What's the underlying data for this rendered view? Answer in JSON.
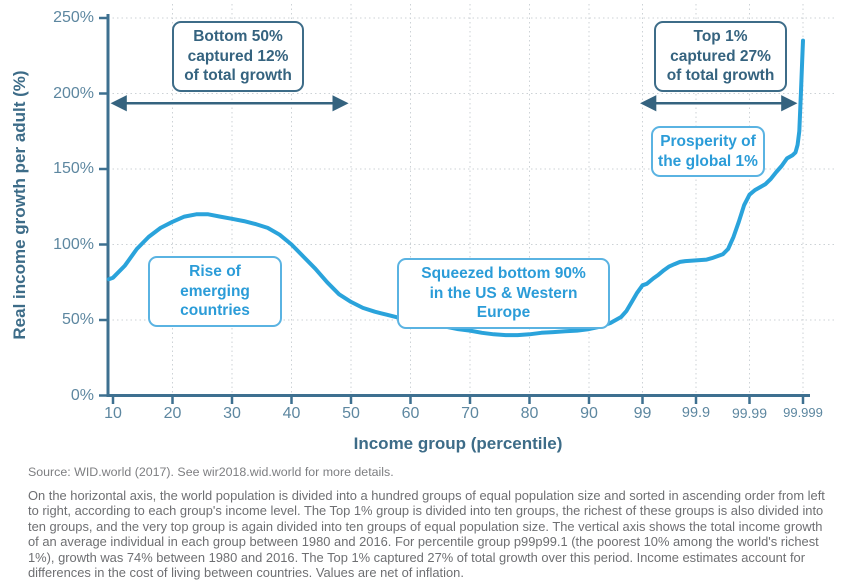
{
  "chart_data": {
    "type": "line",
    "xlabel": "Income group (percentile)",
    "ylabel": "Real income growth per adult (%)",
    "ylim": [
      0,
      250
    ],
    "grid": "dotted, horizontal every 50%, vertical at each x tick",
    "x_scale": "percentiles 10-90 linear, then 99, 99.9, 99.99, 99.999 at equal tick spacing (pos units 100,110,120,130)",
    "x_ticks": [
      {
        "label": "10",
        "pos": 10
      },
      {
        "label": "20",
        "pos": 20
      },
      {
        "label": "30",
        "pos": 30
      },
      {
        "label": "40",
        "pos": 40
      },
      {
        "label": "50",
        "pos": 50
      },
      {
        "label": "60",
        "pos": 60
      },
      {
        "label": "70",
        "pos": 70
      },
      {
        "label": "80",
        "pos": 80
      },
      {
        "label": "90",
        "pos": 90
      },
      {
        "label": "99",
        "pos": 100
      },
      {
        "label": "99.9",
        "pos": 110
      },
      {
        "label": "99.99",
        "pos": 120
      },
      {
        "label": "99.999",
        "pos": 130
      }
    ],
    "y_ticks": [
      {
        "label": "0%",
        "value": 0
      },
      {
        "label": "50%",
        "value": 50
      },
      {
        "label": "100%",
        "value": 100
      },
      {
        "label": "150%",
        "value": 150
      },
      {
        "label": "200%",
        "value": 200
      },
      {
        "label": "250%",
        "value": 250
      }
    ],
    "series": [
      {
        "name": "Real income growth per adult, 1980-2016",
        "color": "#2aa3db",
        "points": [
          [
            9.3,
            77
          ],
          [
            10,
            78
          ],
          [
            12,
            86
          ],
          [
            14,
            97
          ],
          [
            16,
            105
          ],
          [
            18,
            111
          ],
          [
            20,
            115
          ],
          [
            22,
            118.5
          ],
          [
            24,
            120
          ],
          [
            26,
            120
          ],
          [
            28,
            118.5
          ],
          [
            30,
            117
          ],
          [
            32,
            115.5
          ],
          [
            34,
            113.5
          ],
          [
            36,
            111
          ],
          [
            38,
            106.5
          ],
          [
            40,
            100
          ],
          [
            42,
            92
          ],
          [
            44,
            84
          ],
          [
            46,
            75
          ],
          [
            48,
            67
          ],
          [
            50,
            62
          ],
          [
            52,
            58
          ],
          [
            54,
            55.5
          ],
          [
            56,
            53.5
          ],
          [
            58,
            51.5
          ],
          [
            60,
            50
          ],
          [
            62,
            48.5
          ],
          [
            64,
            47
          ],
          [
            66,
            45.5
          ],
          [
            68,
            44
          ],
          [
            70,
            43
          ],
          [
            72,
            41.5
          ],
          [
            74,
            40.5
          ],
          [
            76,
            40
          ],
          [
            78,
            40
          ],
          [
            80,
            40.5
          ],
          [
            82,
            41.5
          ],
          [
            84,
            42
          ],
          [
            86,
            42.5
          ],
          [
            88,
            43
          ],
          [
            90,
            44
          ],
          [
            92,
            45.5
          ],
          [
            94,
            48
          ],
          [
            96,
            52
          ],
          [
            97,
            56
          ],
          [
            98,
            62
          ],
          [
            99,
            68
          ],
          [
            100,
            73
          ],
          [
            100.8,
            74
          ],
          [
            102,
            77.5
          ],
          [
            103,
            80
          ],
          [
            104,
            83
          ],
          [
            105,
            85.5
          ],
          [
            106,
            87
          ],
          [
            107,
            88.5
          ],
          [
            108,
            89
          ],
          [
            110,
            89.5
          ],
          [
            112,
            90
          ],
          [
            113,
            91
          ],
          [
            115,
            93.5
          ],
          [
            116,
            97
          ],
          [
            117,
            105
          ],
          [
            118,
            115
          ],
          [
            119,
            126
          ],
          [
            120,
            133
          ],
          [
            121,
            136
          ],
          [
            122,
            138
          ],
          [
            123,
            140
          ],
          [
            124,
            143.5
          ],
          [
            125,
            148
          ],
          [
            126,
            152
          ],
          [
            127,
            157
          ],
          [
            128,
            159
          ],
          [
            128.6,
            161
          ],
          [
            129,
            166
          ],
          [
            129.3,
            175
          ],
          [
            129.6,
            200
          ],
          [
            129.85,
            222
          ],
          [
            130,
            235
          ]
        ]
      }
    ],
    "arrows": [
      {
        "name": "bottom-50-span",
        "from_pos": 10,
        "to_pos": 49.2,
        "value": 193.5
      },
      {
        "name": "top-1-span",
        "from_pos": 100,
        "to_pos": 128.5,
        "value": 193.5
      }
    ],
    "colors": {
      "curve": "#2aa3db",
      "axis": "#3e7090",
      "tick_labels": "#5d87a0",
      "axis_titles": "#3d6c88",
      "arrow": "#35637f",
      "dark_box_text": "#35637f",
      "light_box_text": "#2b9cd8",
      "gridline": "#ccd2d6"
    }
  },
  "annotations": {
    "bottom50": {
      "lines": [
        "Bottom 50%",
        "captured 12%",
        "of total growth"
      ]
    },
    "top1": {
      "lines": [
        "Top 1%",
        "captured 27%",
        "of total growth"
      ]
    },
    "prosperity": {
      "lines": [
        "Prosperity of",
        "the global 1%"
      ]
    },
    "rise": {
      "lines": [
        "Rise of emerging",
        "countries"
      ]
    },
    "squeezed": {
      "lines": [
        "Squeezed bottom 90%",
        "in the US & Western Europe"
      ]
    }
  },
  "notes": {
    "source": "Source: WID.world (2017). See wir2018.wid.world for more details.",
    "footnote": "On the horizontal axis, the world population is divided into a hundred groups of equal population size and sorted in ascending order from left to right, according to each group's income level. The Top 1% group is divided into ten groups, the richest of these groups is also divided into ten groups, and the very top group is again divided into ten groups of equal population size. The vertical axis shows the total income growth of an average individual in each group between 1980 and 2016. For percentile group p99p99.1 (the poorest 10% among the world's richest 1%), growth was 74% between 1980 and 2016. The Top 1% captured 27% of total growth over this period. Income estimates account for differences in the cost of living between countries. Values are net of inflation."
  }
}
